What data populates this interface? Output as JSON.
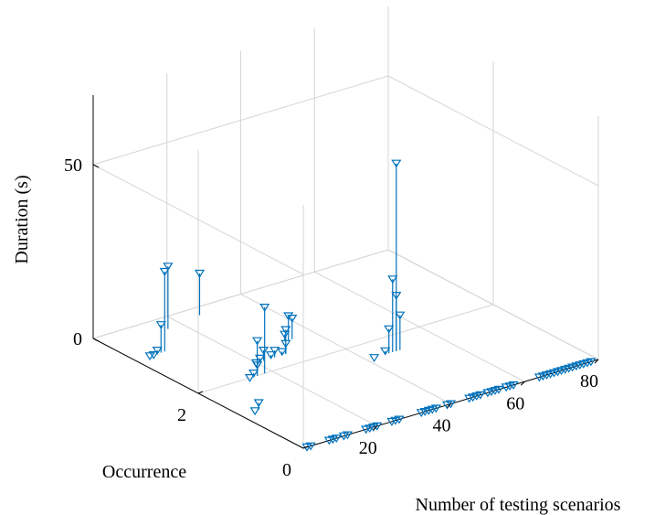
{
  "chart_data": {
    "type": "scatter",
    "subtype": "stem3",
    "title": "",
    "xlabel": "Number of testing scenarios",
    "ylabel": "Occurrence",
    "zlabel": "Duration (s)",
    "xlim": [
      0,
      80
    ],
    "ylim": [
      0,
      4
    ],
    "zlim": [
      0,
      70
    ],
    "xticks": [
      "20",
      "40",
      "60",
      "80"
    ],
    "yticks": [
      "0",
      "2"
    ],
    "zticks": [
      "0",
      "50"
    ],
    "grid": true,
    "marker": "triangle-down",
    "color": "#0072BD",
    "points": [
      {
        "x": 1,
        "y": 0,
        "z": 0
      },
      {
        "x": 2,
        "y": 0,
        "z": 0
      },
      {
        "x": 7,
        "y": 0,
        "z": 0
      },
      {
        "x": 8,
        "y": 0,
        "z": 0
      },
      {
        "x": 9,
        "y": 0,
        "z": 0
      },
      {
        "x": 11,
        "y": 0,
        "z": 0
      },
      {
        "x": 12,
        "y": 0,
        "z": 0
      },
      {
        "x": 17,
        "y": 0,
        "z": 0
      },
      {
        "x": 18,
        "y": 0,
        "z": 0
      },
      {
        "x": 19,
        "y": 0,
        "z": 0
      },
      {
        "x": 20,
        "y": 0,
        "z": 0
      },
      {
        "x": 24,
        "y": 0,
        "z": 0
      },
      {
        "x": 25,
        "y": 0,
        "z": 0
      },
      {
        "x": 26,
        "y": 0,
        "z": 0
      },
      {
        "x": 32,
        "y": 0,
        "z": 0
      },
      {
        "x": 33,
        "y": 0,
        "z": 0
      },
      {
        "x": 34,
        "y": 0,
        "z": 0
      },
      {
        "x": 35,
        "y": 0,
        "z": 0
      },
      {
        "x": 36,
        "y": 0,
        "z": 0
      },
      {
        "x": 39,
        "y": 0,
        "z": 0
      },
      {
        "x": 40,
        "y": 0,
        "z": 0
      },
      {
        "x": 45,
        "y": 0,
        "z": 0
      },
      {
        "x": 46,
        "y": 0,
        "z": 0
      },
      {
        "x": 47,
        "y": 0,
        "z": 0
      },
      {
        "x": 48,
        "y": 0,
        "z": 0
      },
      {
        "x": 50,
        "y": 0,
        "z": 0
      },
      {
        "x": 51,
        "y": 0,
        "z": 0
      },
      {
        "x": 52,
        "y": 0,
        "z": 0
      },
      {
        "x": 53,
        "y": 0,
        "z": 0
      },
      {
        "x": 55,
        "y": 0,
        "z": 0
      },
      {
        "x": 56,
        "y": 0,
        "z": 0
      },
      {
        "x": 57,
        "y": 0,
        "z": 0
      },
      {
        "x": 64,
        "y": 0,
        "z": 0
      },
      {
        "x": 65,
        "y": 0,
        "z": 0
      },
      {
        "x": 66,
        "y": 0,
        "z": 0
      },
      {
        "x": 67,
        "y": 0,
        "z": 0
      },
      {
        "x": 68,
        "y": 0,
        "z": 0
      },
      {
        "x": 69,
        "y": 0,
        "z": 0
      },
      {
        "x": 70,
        "y": 0,
        "z": 0
      },
      {
        "x": 71,
        "y": 0,
        "z": 0
      },
      {
        "x": 72,
        "y": 0,
        "z": 0
      },
      {
        "x": 73,
        "y": 0,
        "z": 0
      },
      {
        "x": 74,
        "y": 0,
        "z": 0
      },
      {
        "x": 75,
        "y": 0,
        "z": 0
      },
      {
        "x": 76,
        "y": 0,
        "z": 0
      },
      {
        "x": 77,
        "y": 0,
        "z": 0
      },
      {
        "x": 78,
        "y": 0,
        "z": 0
      },
      {
        "x": 4,
        "y": 1.2,
        "z": 0
      },
      {
        "x": 5,
        "y": 1.2,
        "z": 2
      },
      {
        "x": 4,
        "y": 3.2,
        "z": 0
      },
      {
        "x": 5,
        "y": 3.2,
        "z": 0
      },
      {
        "x": 6,
        "y": 3.2,
        "z": 1
      },
      {
        "x": 7,
        "y": 3.2,
        "z": 8
      },
      {
        "x": 8,
        "y": 3.2,
        "z": 23
      },
      {
        "x": 16,
        "y": 3.7,
        "z": 18
      },
      {
        "x": 26,
        "y": 3.8,
        "z": 12
      },
      {
        "x": 14,
        "y": 2.0,
        "z": 0
      },
      {
        "x": 15,
        "y": 2.0,
        "z": 1
      },
      {
        "x": 16,
        "y": 2.0,
        "z": 3
      },
      {
        "x": 16,
        "y": 2.0,
        "z": 10
      },
      {
        "x": 18,
        "y": 2.0,
        "z": 19
      },
      {
        "x": 20,
        "y": 2.3,
        "z": 0
      },
      {
        "x": 21,
        "y": 2.3,
        "z": 1
      },
      {
        "x": 22,
        "y": 2.3,
        "z": 3
      },
      {
        "x": 24,
        "y": 2.3,
        "z": 1
      },
      {
        "x": 25,
        "y": 2.3,
        "z": 2
      },
      {
        "x": 27,
        "y": 2.3,
        "z": 1
      },
      {
        "x": 28,
        "y": 2.3,
        "z": 3
      },
      {
        "x": 28,
        "y": 2.3,
        "z": 7
      },
      {
        "x": 32,
        "y": 2.6,
        "z": 2
      },
      {
        "x": 33,
        "y": 2.6,
        "z": 7
      },
      {
        "x": 34,
        "y": 2.6,
        "z": 6
      },
      {
        "x": 42,
        "y": 1.6,
        "z": 0
      },
      {
        "x": 45,
        "y": 1.6,
        "z": 1
      },
      {
        "x": 46,
        "y": 1.6,
        "z": 7
      },
      {
        "x": 47,
        "y": 1.6,
        "z": 21
      },
      {
        "x": 48,
        "y": 1.6,
        "z": 16
      },
      {
        "x": 49,
        "y": 1.6,
        "z": 10
      },
      {
        "x": 48,
        "y": 1.6,
        "z": 54
      }
    ]
  }
}
